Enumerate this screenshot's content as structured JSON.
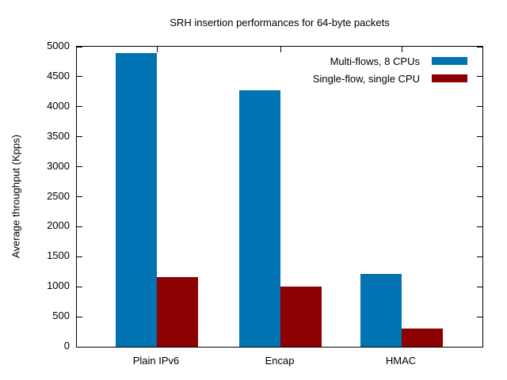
{
  "chart_data": {
    "type": "bar",
    "title": "SRH insertion performances for 64-byte packets",
    "ylabel": "Average throughput (Kpps)",
    "xlabel": "",
    "categories": [
      "Plain IPv6",
      "Encap",
      "HMAC"
    ],
    "series": [
      {
        "name": "Multi-flows, 8 CPUs",
        "color": "#0173b2",
        "values": [
          4900,
          4280,
          1210
        ]
      },
      {
        "name": "Single-flow, single CPU",
        "color": "#8b0000",
        "values": [
          1160,
          1000,
          300
        ]
      }
    ],
    "ylim": [
      0,
      5000
    ],
    "ytick_step": 500,
    "ytick_labels": [
      "0",
      "500",
      "1000",
      "1500",
      "2000",
      "2500",
      "3000",
      "3500",
      "4000",
      "4500",
      "5000"
    ],
    "grid": false,
    "legend_position": "top-right",
    "frame_color": "#000000",
    "background_color": "#ffffff"
  }
}
